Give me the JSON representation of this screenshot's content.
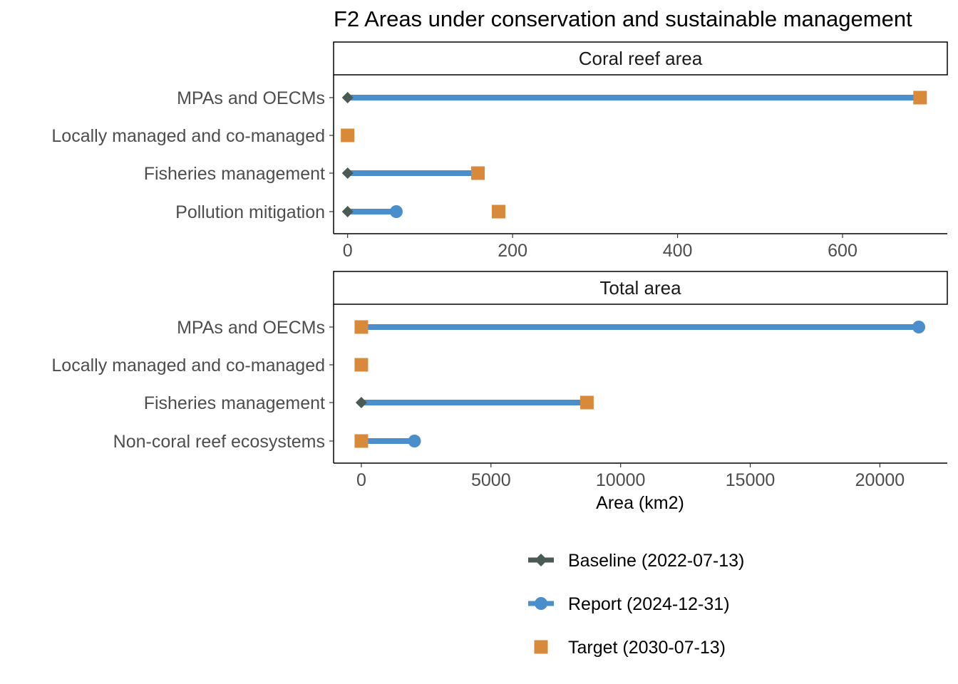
{
  "chart_data": {
    "type": "dumbbell",
    "title": "F2 Areas under conservation and sustainable management",
    "xlabel": "Area (km2)",
    "legend": {
      "position": "bottom",
      "entries": [
        {
          "key": "baseline",
          "label": "Baseline (2022-07-13)",
          "color": "#4b5a54",
          "shape": "diamond"
        },
        {
          "key": "report",
          "label": "Report (2024-12-31)",
          "color": "#4a8fcb",
          "shape": "circle"
        },
        {
          "key": "target",
          "label": "Target (2030-07-13)",
          "color": "#d9893a",
          "shape": "square"
        }
      ]
    },
    "panels": [
      {
        "strip": "Coral reef area",
        "xlim": [
          -17,
          727
        ],
        "ticks": [
          0,
          200,
          400,
          600
        ],
        "tick_labels": [
          "0",
          "200",
          "400",
          "600"
        ],
        "categories": [
          "MPAs and OECMs",
          "Locally managed and co-managed",
          "Fisheries management",
          "Pollution mitigation"
        ],
        "baseline": [
          0,
          0,
          0,
          0
        ],
        "report": [
          694,
          0,
          158,
          59
        ],
        "target": [
          694,
          0,
          158,
          183
        ]
      },
      {
        "strip": "Total area",
        "xlim": [
          -1070,
          22600
        ],
        "ticks": [
          0,
          5000,
          10000,
          15000,
          20000
        ],
        "tick_labels": [
          "0",
          "5000",
          "10000",
          "15000",
          "20000"
        ],
        "categories": [
          "MPAs and OECMs",
          "Locally managed and co-managed",
          "Fisheries management",
          "Non-coral reef ecosystems"
        ],
        "baseline": [
          0,
          0,
          0,
          0
        ],
        "report": [
          21500,
          0,
          8700,
          2050
        ],
        "target": [
          0,
          0,
          8700,
          0
        ]
      }
    ]
  }
}
